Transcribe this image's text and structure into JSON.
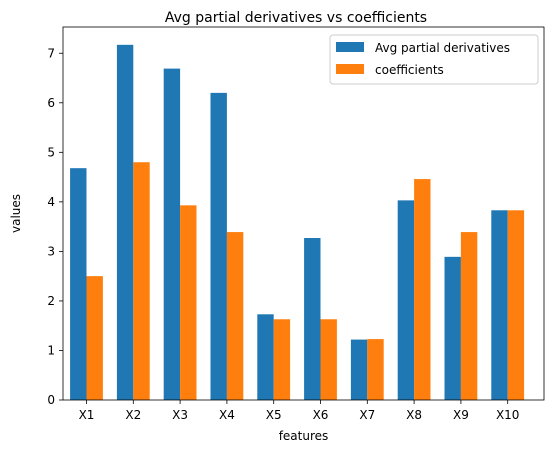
{
  "chart_data": {
    "type": "bar",
    "title": "Avg partial derivatives vs coefficients",
    "xlabel": "features",
    "ylabel": "values",
    "categories": [
      "X1",
      "X2",
      "X3",
      "X4",
      "X5",
      "X6",
      "X7",
      "X8",
      "X9",
      "X10"
    ],
    "series": [
      {
        "name": "Avg partial derivatives",
        "color": "#1f77b4",
        "values": [
          4.68,
          7.17,
          6.69,
          6.2,
          1.73,
          3.27,
          1.22,
          4.03,
          2.89,
          3.83
        ]
      },
      {
        "name": "coefficients",
        "color": "#ff7f0e",
        "values": [
          2.5,
          4.8,
          3.93,
          3.39,
          1.63,
          1.63,
          1.23,
          4.46,
          3.39,
          3.83
        ]
      }
    ],
    "ylim": [
      0,
      7.53
    ],
    "yticks": [
      0,
      1,
      2,
      3,
      4,
      5,
      6,
      7
    ],
    "legend_position": "top-right",
    "grid": false
  }
}
